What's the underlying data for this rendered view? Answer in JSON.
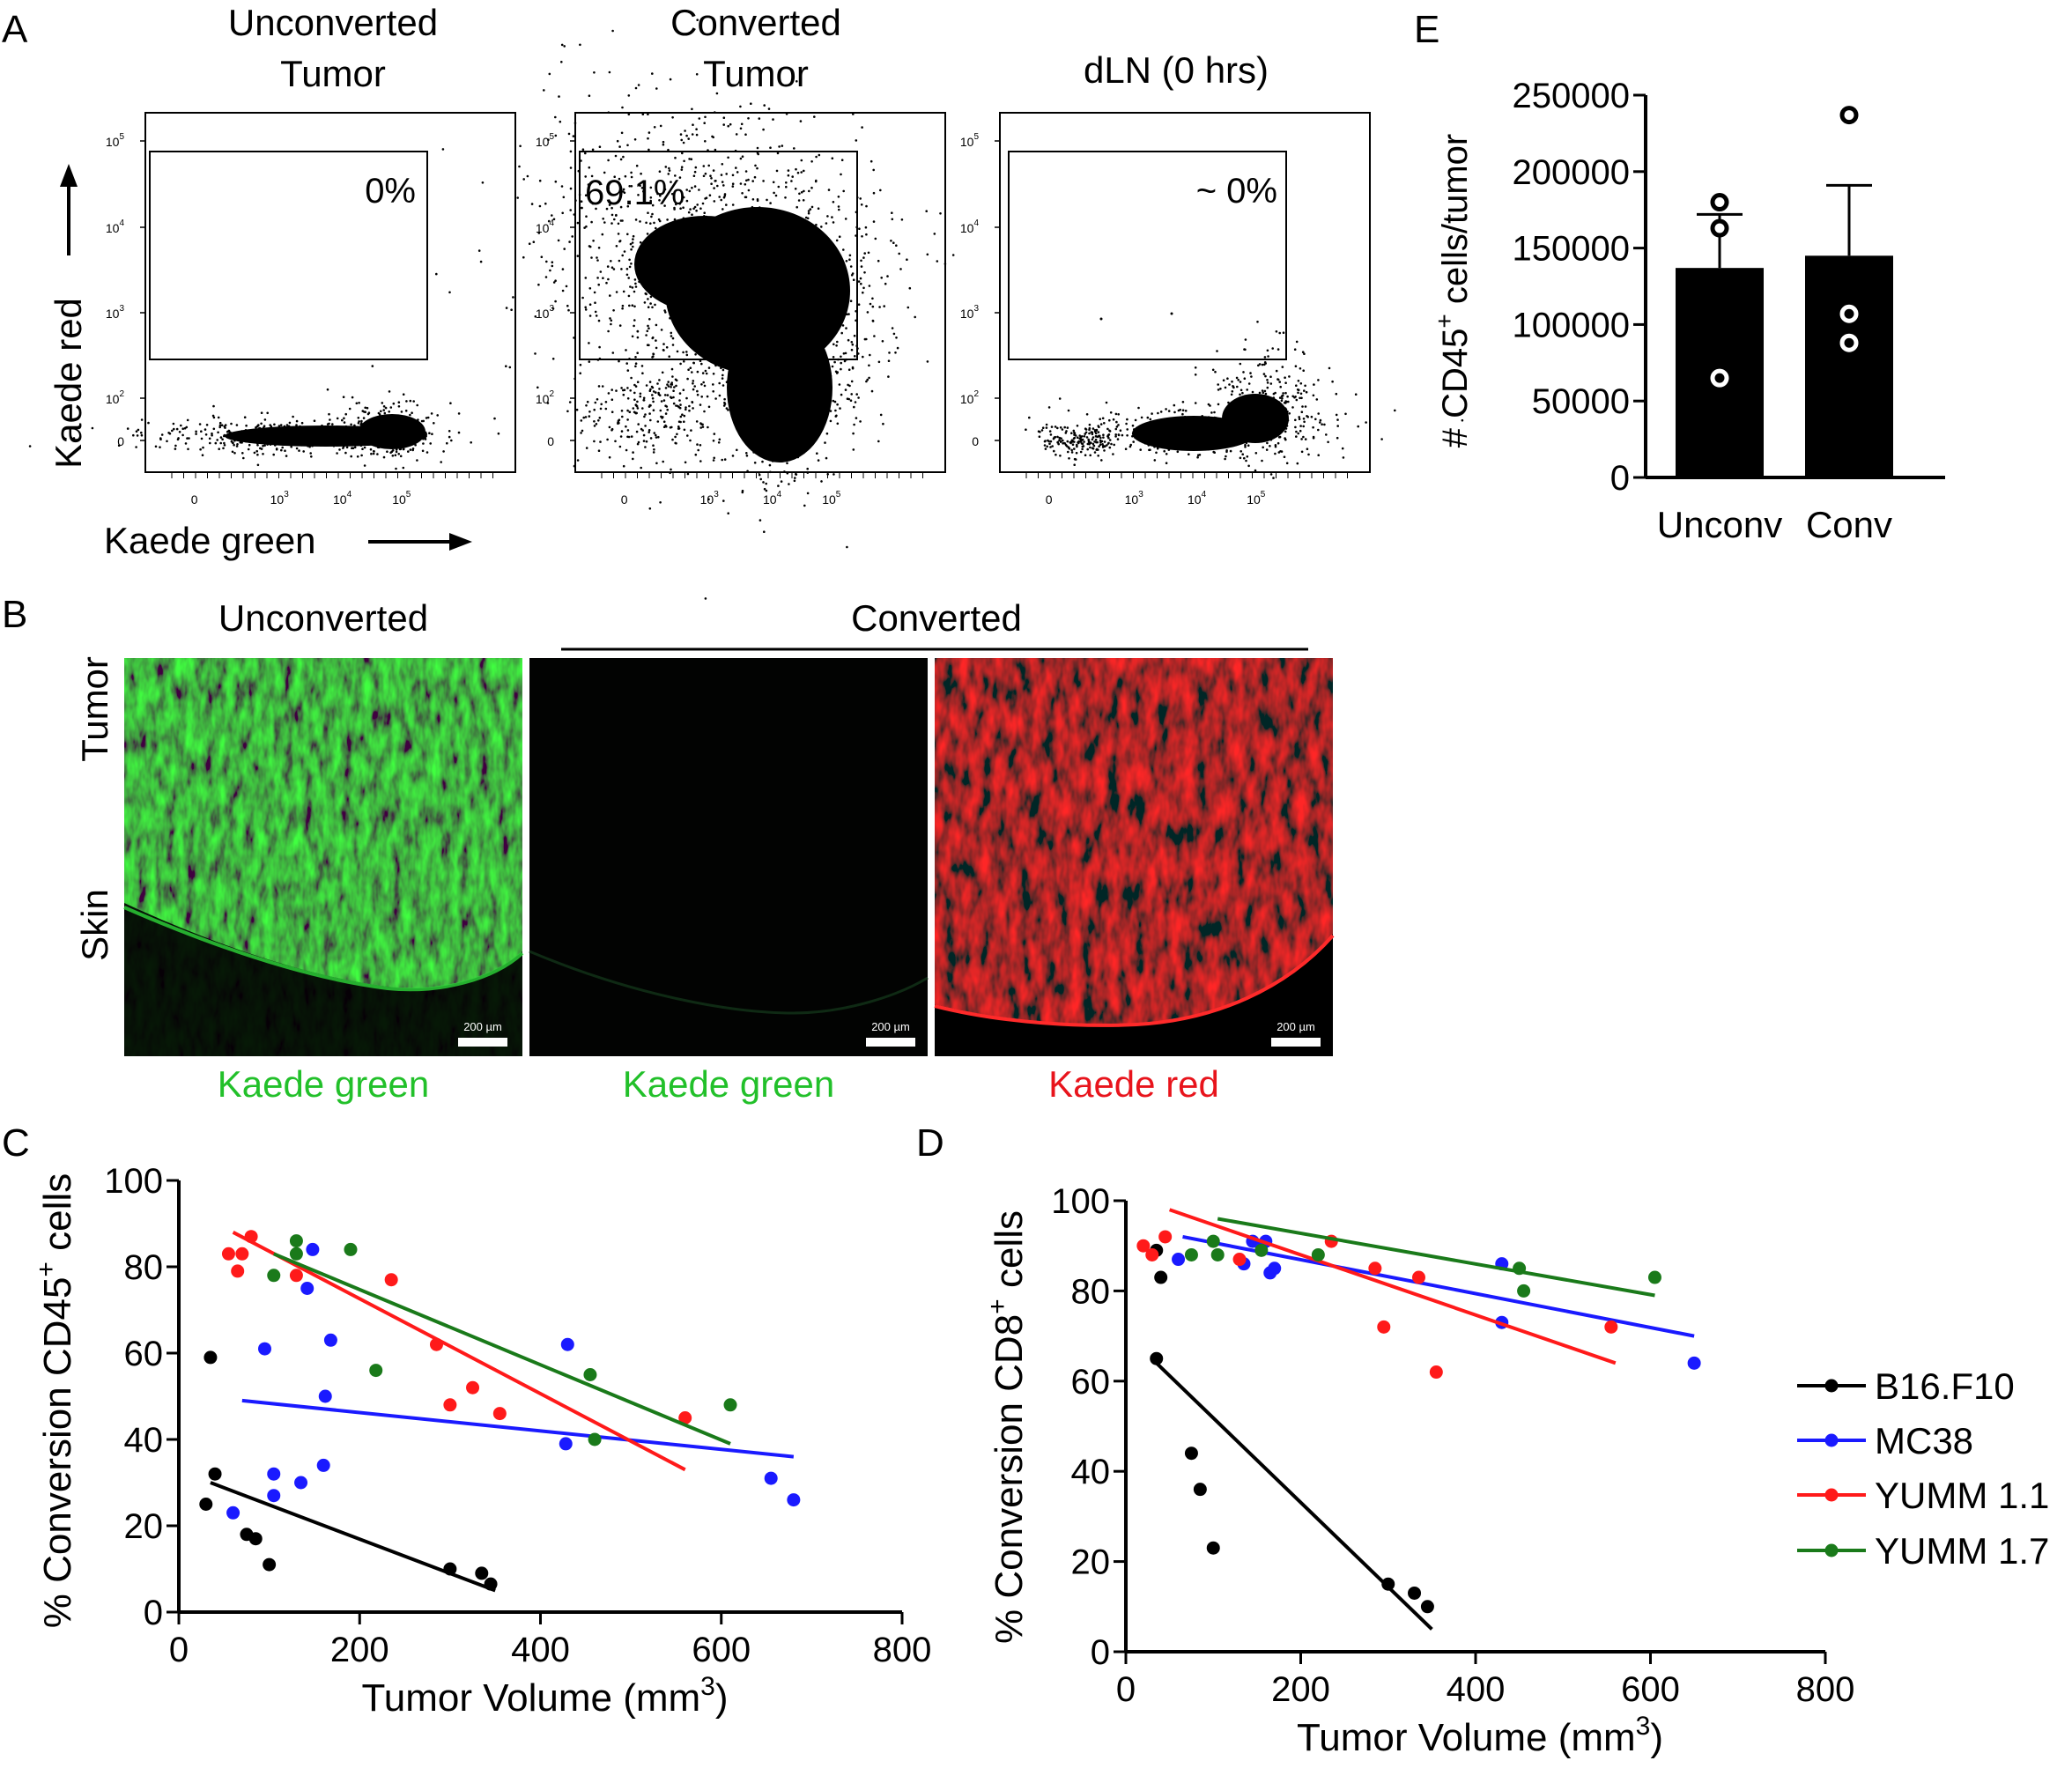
{
  "panel_letters": {
    "a": "A",
    "b": "B",
    "c": "C",
    "d": "D",
    "e": "E"
  },
  "colors": {
    "black": "#000000",
    "blue": "#1a1aff",
    "red": "#ff1a1a",
    "green": "#1a7a1a",
    "kaede_green": "#22c02a",
    "kaede_red": "#e8141c"
  },
  "panel_a": {
    "plots": [
      {
        "title_line1": "Unconverted",
        "title_line2": "Tumor",
        "gate_pct": "0%"
      },
      {
        "title_line1": "Converted",
        "title_line2": "Tumor",
        "gate_pct": "69.1%"
      },
      {
        "title_line1": "dLN (0 hrs)",
        "title_line2": "",
        "gate_pct": "~ 0%"
      }
    ],
    "y_ticks": [
      "10",
      "10",
      "10",
      "10",
      "0"
    ],
    "y_tick_exps": [
      "5",
      "4",
      "3",
      "2",
      ""
    ],
    "x_ticks": [
      "0",
      "10",
      "10",
      "10"
    ],
    "x_tick_exps": [
      "",
      "3",
      "4",
      "5"
    ],
    "ylabel": "Kaede red",
    "xlabel": "Kaede green"
  },
  "panel_b": {
    "col_unconverted": "Unconverted",
    "col_converted": "Converted",
    "row_tumor": "Tumor",
    "row_skin": "Skin",
    "image_labels": [
      "Kaede green",
      "Kaede green",
      "Kaede red"
    ],
    "scale_bar": "200 µm"
  },
  "chart_data": [
    {
      "id": "C",
      "type": "scatter",
      "title": "",
      "xlabel": "Tumor Volume (mm",
      "xlabel_sup": "3",
      "xlabel_end": ")",
      "ylabel_pre": "% Conversion CD45",
      "ylabel_sup": "+",
      "ylabel_post": " cells",
      "xlim": [
        0,
        800
      ],
      "ylim": [
        0,
        100
      ],
      "x_ticks": [
        0,
        200,
        400,
        600,
        800
      ],
      "y_ticks": [
        0,
        20,
        40,
        60,
        80,
        100
      ],
      "series": [
        {
          "name": "B16.F10",
          "color": "#000000",
          "points": [
            [
              35,
              59
            ],
            [
              40,
              32
            ],
            [
              30,
              25
            ],
            [
              75,
              18
            ],
            [
              85,
              17
            ],
            [
              100,
              11
            ],
            [
              300,
              10
            ],
            [
              335,
              9
            ],
            [
              345,
              6.5
            ]
          ],
          "fit": [
            [
              35,
              30
            ],
            [
              350,
              5
            ]
          ]
        },
        {
          "name": "MC38",
          "color": "#1a1aff",
          "points": [
            [
              148,
              84
            ],
            [
              142,
              75
            ],
            [
              95,
              61
            ],
            [
              168,
              63
            ],
            [
              162,
              50
            ],
            [
              430,
              62
            ],
            [
              428,
              39
            ],
            [
              655,
              31
            ],
            [
              680,
              26
            ],
            [
              60,
              23
            ],
            [
              105,
              32
            ],
            [
              105,
              27
            ],
            [
              135,
              30
            ],
            [
              160,
              34
            ]
          ],
          "fit": [
            [
              70,
              49
            ],
            [
              680,
              36
            ]
          ]
        },
        {
          "name": "YUMM 1.1",
          "color": "#ff1a1a",
          "points": [
            [
              55,
              83
            ],
            [
              70,
              83
            ],
            [
              65,
              79
            ],
            [
              80,
              87
            ],
            [
              130,
              78
            ],
            [
              235,
              77
            ],
            [
              285,
              62
            ],
            [
              325,
              52
            ],
            [
              300,
              48
            ],
            [
              355,
              46
            ],
            [
              560,
              45
            ]
          ],
          "fit": [
            [
              60,
              88
            ],
            [
              560,
              33
            ]
          ]
        },
        {
          "name": "YUMM 1.7",
          "color": "#1a7a1a",
          "points": [
            [
              130,
              86
            ],
            [
              130,
              83
            ],
            [
              105,
              78
            ],
            [
              190,
              84
            ],
            [
              218,
              56
            ],
            [
              455,
              55
            ],
            [
              460,
              40
            ],
            [
              610,
              48
            ]
          ],
          "fit": [
            [
              105,
              83
            ],
            [
              610,
              39
            ]
          ]
        }
      ]
    },
    {
      "id": "D",
      "type": "scatter",
      "title": "",
      "xlabel": "Tumor Volume (mm",
      "xlabel_sup": "3",
      "xlabel_end": ")",
      "ylabel_pre": "% Conversion CD8",
      "ylabel_sup": "+",
      "ylabel_post": " cells",
      "xlim": [
        0,
        800
      ],
      "ylim": [
        0,
        100
      ],
      "x_ticks": [
        0,
        200,
        400,
        600,
        800
      ],
      "y_ticks": [
        0,
        20,
        40,
        60,
        80,
        100
      ],
      "legend": [
        "B16.F10",
        "MC38",
        "YUMM 1.1",
        "YUMM 1.7"
      ],
      "legend_position": "right",
      "series": [
        {
          "name": "B16.F10",
          "color": "#000000",
          "points": [
            [
              35,
              89
            ],
            [
              40,
              83
            ],
            [
              35,
              65
            ],
            [
              75,
              44
            ],
            [
              85,
              36
            ],
            [
              100,
              23
            ],
            [
              300,
              15
            ],
            [
              330,
              13
            ],
            [
              345,
              10
            ]
          ],
          "fit": [
            [
              35,
              64
            ],
            [
              350,
              5
            ]
          ]
        },
        {
          "name": "MC38",
          "color": "#1a1aff",
          "points": [
            [
              145,
              91
            ],
            [
              160,
              91
            ],
            [
              60,
              87
            ],
            [
              135,
              86
            ],
            [
              155,
              90
            ],
            [
              165,
              84
            ],
            [
              170,
              85
            ],
            [
              430,
              86
            ],
            [
              430,
              73
            ],
            [
              650,
              64
            ]
          ],
          "fit": [
            [
              65,
              92
            ],
            [
              650,
              70
            ]
          ]
        },
        {
          "name": "YUMM 1.1",
          "color": "#ff1a1a",
          "points": [
            [
              20,
              90
            ],
            [
              30,
              88
            ],
            [
              45,
              92
            ],
            [
              130,
              87
            ],
            [
              235,
              91
            ],
            [
              285,
              85
            ],
            [
              335,
              83
            ],
            [
              295,
              72
            ],
            [
              355,
              62
            ],
            [
              555,
              72
            ]
          ],
          "fit": [
            [
              50,
              98
            ],
            [
              560,
              64
            ]
          ]
        },
        {
          "name": "YUMM 1.7",
          "color": "#1a7a1a",
          "points": [
            [
              75,
              88
            ],
            [
              100,
              91
            ],
            [
              105,
              88
            ],
            [
              155,
              89
            ],
            [
              220,
              88
            ],
            [
              450,
              85
            ],
            [
              455,
              80
            ],
            [
              605,
              83
            ]
          ],
          "fit": [
            [
              105,
              96
            ],
            [
              605,
              79
            ]
          ]
        }
      ]
    },
    {
      "id": "E",
      "type": "bar",
      "title": "",
      "categories": [
        "Unconv",
        "Conv"
      ],
      "values": [
        137000,
        145000
      ],
      "error_upper": [
        172000,
        191000
      ],
      "points": [
        [
          180000,
          163000,
          65000
        ],
        [
          237000,
          107000,
          88000
        ]
      ],
      "ylabel_pre": "# CD45",
      "ylabel_sup": "+",
      "ylabel_post": " cells/tumor",
      "ylim": [
        0,
        250000
      ],
      "y_ticks": [
        0,
        50000,
        100000,
        150000,
        200000,
        250000
      ],
      "y_tick_labels": [
        "0",
        "50000",
        "100000",
        "150000",
        "200000",
        "250000"
      ]
    }
  ]
}
